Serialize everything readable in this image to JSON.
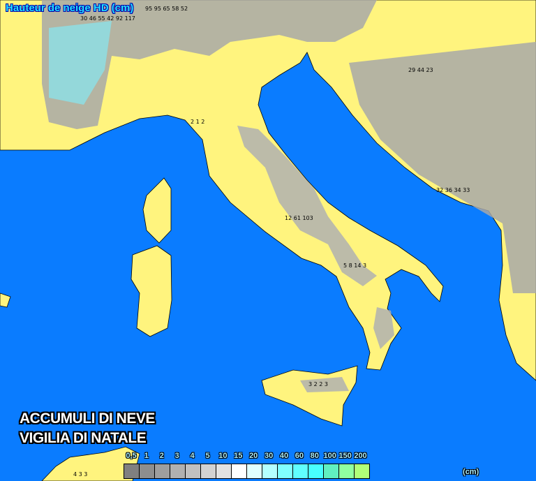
{
  "title": "Hauteur de neige HD (cm)",
  "caption": {
    "line1": "ACCUMULI DI NEVE",
    "line2": "VIGILIA DI NATALE"
  },
  "colors": {
    "sea": "#0a7cff",
    "land": "#fff47e",
    "snow_light": "#d8d8d8",
    "snow_dark": "#8a8a8a"
  },
  "legend": {
    "unit": "(cm)",
    "labels": [
      "0,5",
      "1",
      "2",
      "3",
      "4",
      "5",
      "10",
      "15",
      "20",
      "30",
      "40",
      "60",
      "80",
      "100",
      "150",
      "200"
    ],
    "colors": [
      "#808080",
      "#8e8e8e",
      "#9e9e9e",
      "#b0b0b0",
      "#c0c0c0",
      "#d2d2d2",
      "#e2e2e2",
      "#ffffff",
      "#e0ffff",
      "#b4ffff",
      "#80ffff",
      "#60ffff",
      "#48ffff",
      "#60f0c0",
      "#90ffa0",
      "#b0ff78"
    ]
  },
  "sample_values": [
    {
      "text": "95 95 65 58 52"
    },
    {
      "text": "30 46 55 42 92 117"
    },
    {
      "text": "29 44 23"
    },
    {
      "text": "32 36 34 33"
    },
    {
      "text": "12 61 103"
    },
    {
      "text": "5 8 14 3"
    },
    {
      "text": "3 2 2 3"
    },
    {
      "text": "2 1 2"
    },
    {
      "text": "4 3 3"
    }
  ]
}
